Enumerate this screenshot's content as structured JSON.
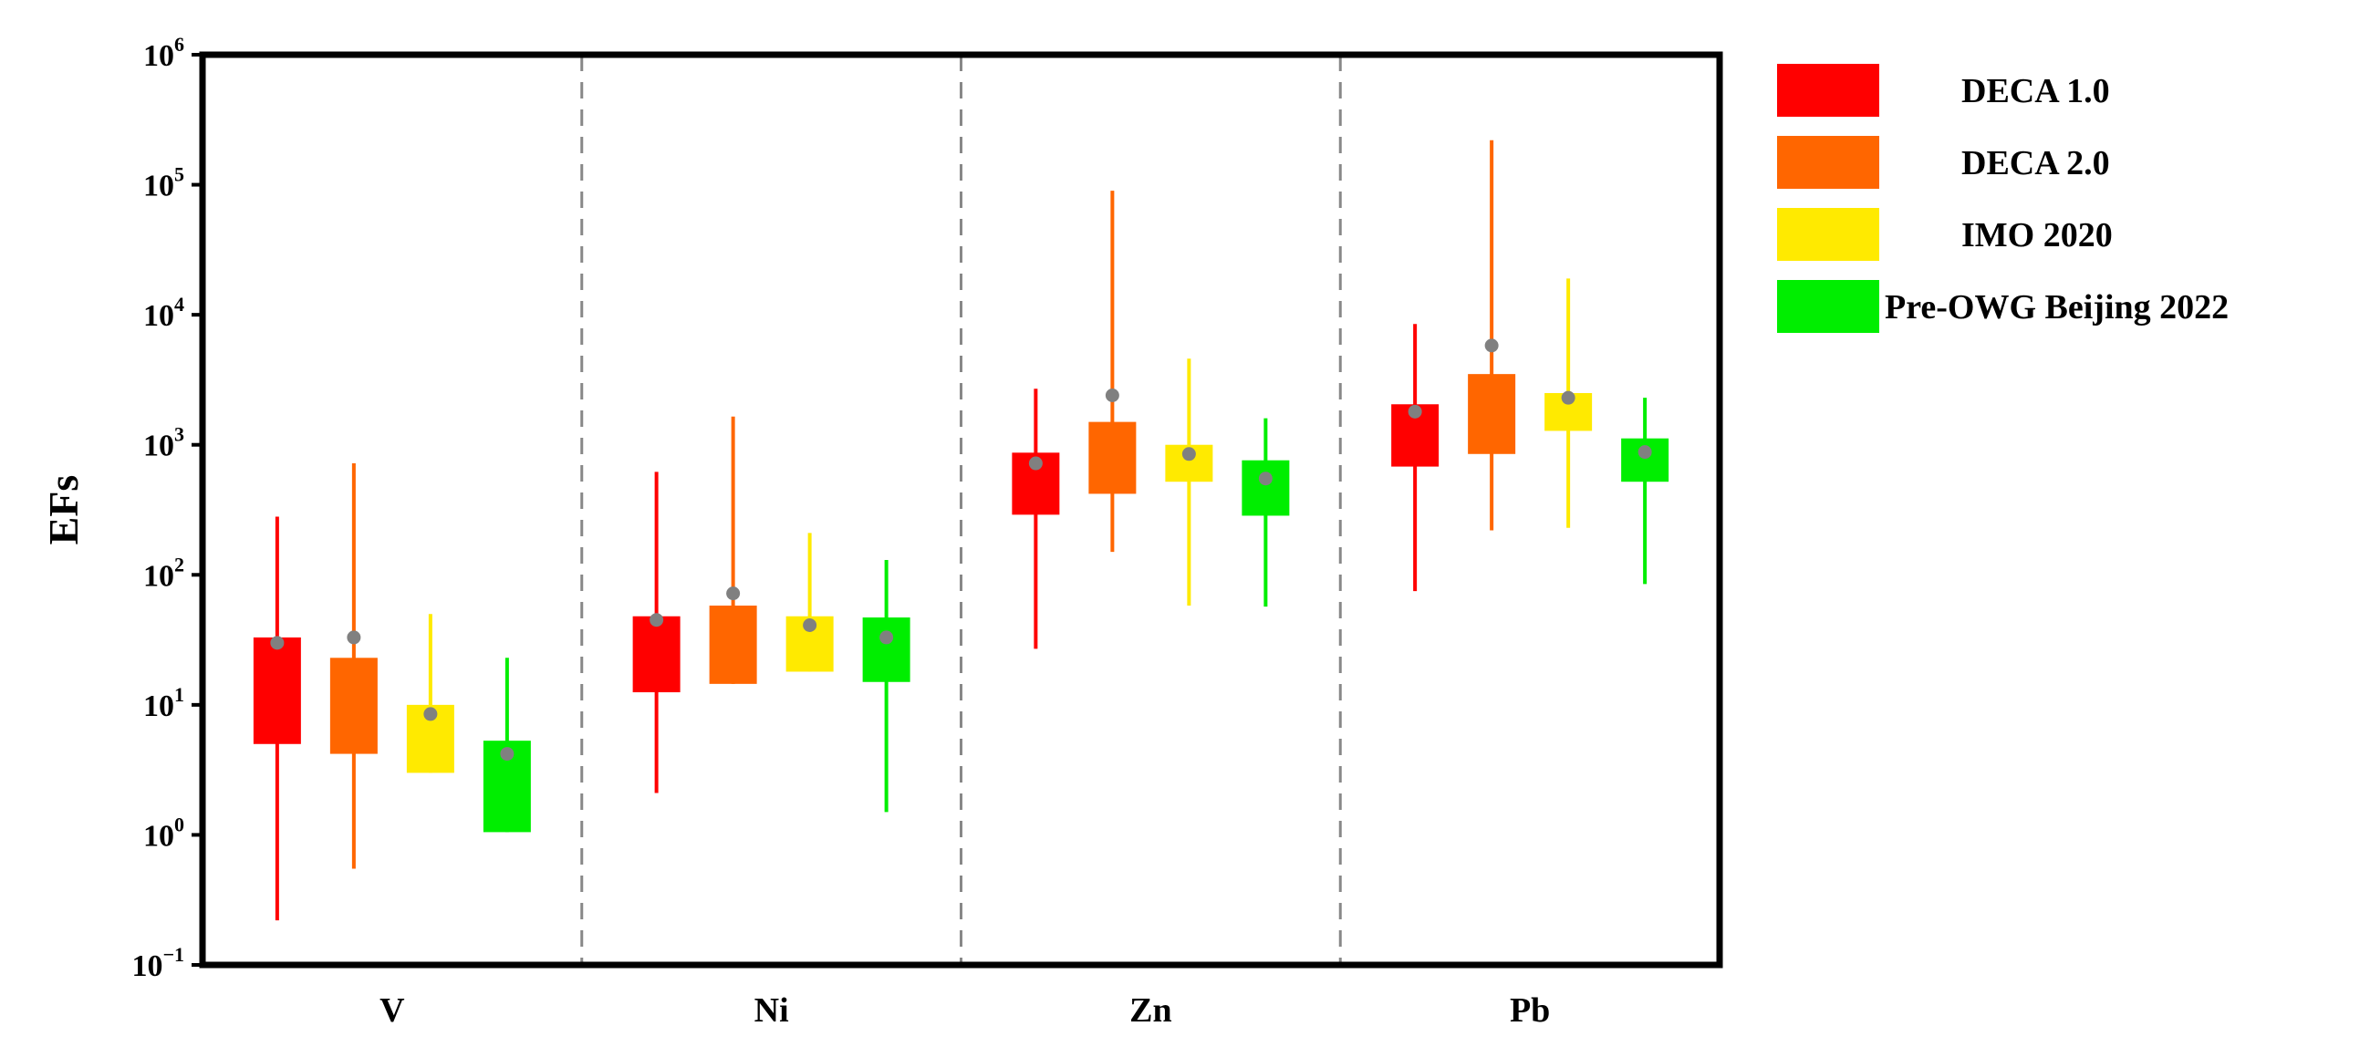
{
  "chart_data": {
    "type": "box",
    "ylabel": "EFs",
    "yscale": "log",
    "ylim": [
      0.1,
      1000000
    ],
    "yticks": [
      {
        "value": 0.1,
        "base": "10",
        "exp": "−1"
      },
      {
        "value": 1,
        "base": "10",
        "exp": "0"
      },
      {
        "value": 10,
        "base": "10",
        "exp": "1"
      },
      {
        "value": 100,
        "base": "10",
        "exp": "2"
      },
      {
        "value": 1000,
        "base": "10",
        "exp": "3"
      },
      {
        "value": 10000,
        "base": "10",
        "exp": "4"
      },
      {
        "value": 100000,
        "base": "10",
        "exp": "5"
      },
      {
        "value": 1000000,
        "base": "10",
        "exp": "6"
      }
    ],
    "categories": [
      "V",
      "Ni",
      "Zn",
      "Pb"
    ],
    "legend_position": "right",
    "series": [
      {
        "name": "DECA 1.0",
        "color": "#ff0000",
        "data": [
          {
            "min": 0.22,
            "q1": 5,
            "q3": 33,
            "max": 280,
            "mean": 30
          },
          {
            "min": 2.1,
            "q1": 12.5,
            "q3": 48,
            "max": 620,
            "mean": 45
          },
          {
            "min": 27,
            "q1": 290,
            "q3": 870,
            "max": 2700,
            "mean": 720
          },
          {
            "min": 75,
            "q1": 680,
            "q3": 2050,
            "max": 8500,
            "mean": 1800
          }
        ]
      },
      {
        "name": "DECA 2.0",
        "color": "#ff6600",
        "data": [
          {
            "min": 0.55,
            "q1": 4.2,
            "q3": 23,
            "max": 720,
            "mean": 33
          },
          {
            "min": null,
            "q1": 14.5,
            "q3": 58,
            "max": 1650,
            "mean": 72
          },
          {
            "min": 150,
            "q1": 420,
            "q3": 1500,
            "max": 90000,
            "mean": 2400
          },
          {
            "min": 220,
            "q1": 850,
            "q3": 3500,
            "max": 220000,
            "mean": 5800
          }
        ]
      },
      {
        "name": "IMO 2020",
        "color": "#ffea00",
        "data": [
          {
            "min": null,
            "q1": 3,
            "q3": 10,
            "max": 50,
            "mean": 8.5
          },
          {
            "min": null,
            "q1": 18,
            "q3": 48,
            "max": 210,
            "mean": 41
          },
          {
            "min": 58,
            "q1": 520,
            "q3": 1000,
            "max": 4600,
            "mean": 850
          },
          {
            "min": 230,
            "q1": 1280,
            "q3": 2500,
            "max": 19000,
            "mean": 2300
          }
        ]
      },
      {
        "name": "Pre-OWG Beijing 2022",
        "color": "#00ee00",
        "data": [
          {
            "min": null,
            "q1": 1.05,
            "q3": 5.3,
            "max": 23,
            "mean": 4.2
          },
          {
            "min": 1.5,
            "q1": 15,
            "q3": 47,
            "max": 130,
            "mean": 33
          },
          {
            "min": 57,
            "q1": 285,
            "q3": 760,
            "max": 1600,
            "mean": 550
          },
          {
            "min": 85,
            "q1": 520,
            "q3": 1120,
            "max": 2300,
            "mean": 880
          }
        ]
      }
    ],
    "mean_marker_color": "#808080"
  }
}
